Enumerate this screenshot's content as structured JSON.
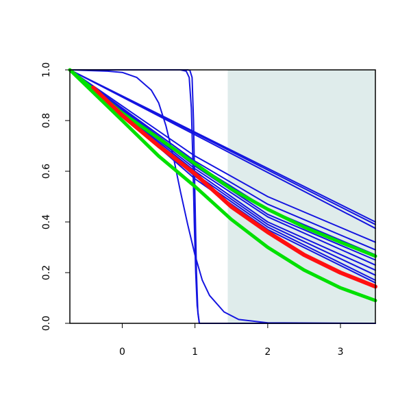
{
  "chart_data": {
    "type": "line",
    "title": "",
    "xlabel": "",
    "ylabel": "",
    "xlim": [
      -0.72,
      3.48
    ],
    "ylim": [
      0,
      1
    ],
    "x_ticks": [
      0,
      1,
      2,
      3
    ],
    "y_ticks": [
      0.0,
      0.2,
      0.4,
      0.6,
      0.8,
      1.0
    ],
    "x_tick_labels": [
      "0",
      "1",
      "2",
      "3"
    ],
    "y_tick_labels": [
      "0.0",
      "0.2",
      "0.4",
      "0.6",
      "0.8",
      "1.0"
    ],
    "grid": false,
    "legend": "none",
    "shaded_region": {
      "x_from": 1.45,
      "x_to": 3.48,
      "color": "#dfeceb"
    },
    "series": [
      {
        "color": "#1414e0",
        "width": 2,
        "x": [
          -0.72,
          0.0,
          0.5,
          0.8,
          0.9,
          0.93,
          0.96,
          0.98,
          1.0,
          1.02,
          1.04,
          1.06,
          3.48
        ],
        "y": [
          1.0,
          1.0,
          1.0,
          1.0,
          1.0,
          0.998,
          0.97,
          0.8,
          0.5,
          0.2,
          0.04,
          0.0,
          0.0
        ]
      },
      {
        "color": "#1414e0",
        "width": 2,
        "x": [
          -0.72,
          0.8,
          0.88,
          0.92,
          0.95,
          0.97,
          0.99,
          1.01,
          1.03,
          1.06,
          3.48
        ],
        "y": [
          1.0,
          1.0,
          0.995,
          0.97,
          0.85,
          0.65,
          0.4,
          0.2,
          0.07,
          0.0,
          0.0
        ]
      },
      {
        "color": "#1414e0",
        "width": 2,
        "x": [
          -0.72,
          -0.2,
          0.0,
          0.2,
          0.4,
          0.5,
          0.6,
          0.7,
          0.8,
          0.9,
          1.0,
          1.1,
          1.2,
          1.4,
          1.6,
          2.0,
          3.48
        ],
        "y": [
          1.0,
          0.995,
          0.99,
          0.97,
          0.92,
          0.87,
          0.78,
          0.66,
          0.52,
          0.39,
          0.27,
          0.17,
          0.11,
          0.045,
          0.015,
          0.002,
          0.0
        ]
      },
      {
        "color": "#1414e0",
        "width": 2,
        "x": [
          -0.72,
          3.48
        ],
        "y": [
          1.0,
          0.4
        ]
      },
      {
        "color": "#1414e0",
        "width": 2,
        "x": [
          -0.72,
          3.48
        ],
        "y": [
          1.0,
          0.39
        ]
      },
      {
        "color": "#1414e0",
        "width": 2,
        "x": [
          -0.72,
          3.48
        ],
        "y": [
          1.0,
          0.375
        ]
      },
      {
        "color": "#1414e0",
        "width": 2,
        "x": [
          -0.72,
          1.0,
          2.0,
          3.48
        ],
        "y": [
          1.0,
          0.66,
          0.5,
          0.32
        ]
      },
      {
        "color": "#1414e0",
        "width": 2,
        "x": [
          -0.72,
          1.0,
          2.0,
          3.48
        ],
        "y": [
          1.0,
          0.64,
          0.47,
          0.29
        ]
      },
      {
        "color": "#1414e0",
        "width": 2,
        "x": [
          -0.72,
          1.0,
          2.0,
          3.48
        ],
        "y": [
          1.0,
          0.63,
          0.45,
          0.27
        ]
      },
      {
        "color": "#1414e0",
        "width": 2,
        "x": [
          -0.72,
          1.0,
          2.0,
          3.48
        ],
        "y": [
          1.0,
          0.62,
          0.43,
          0.25
        ]
      },
      {
        "color": "#1414e0",
        "width": 2,
        "x": [
          -0.72,
          1.0,
          2.0,
          3.48
        ],
        "y": [
          1.0,
          0.61,
          0.42,
          0.23
        ]
      },
      {
        "color": "#1414e0",
        "width": 2,
        "x": [
          -0.72,
          1.0,
          2.0,
          3.48
        ],
        "y": [
          1.0,
          0.6,
          0.4,
          0.21
        ]
      },
      {
        "color": "#1414e0",
        "width": 2,
        "x": [
          -0.72,
          1.0,
          2.0,
          3.48
        ],
        "y": [
          1.0,
          0.59,
          0.39,
          0.19
        ]
      },
      {
        "color": "#1414e0",
        "width": 2,
        "x": [
          -0.72,
          1.0,
          2.0,
          3.48
        ],
        "y": [
          1.0,
          0.58,
          0.38,
          0.17
        ]
      },
      {
        "color": "#1414e0",
        "width": 2,
        "x": [
          -0.72,
          1.0,
          2.0,
          3.48
        ],
        "y": [
          1.0,
          0.57,
          0.37,
          0.16
        ]
      },
      {
        "color": "#00e000",
        "width": 5,
        "x": [
          -0.72,
          -0.3,
          0.0,
          0.5,
          1.0,
          1.5,
          2.0,
          2.5,
          3.0,
          3.48
        ],
        "y": [
          1.0,
          0.9,
          0.83,
          0.73,
          0.63,
          0.53,
          0.45,
          0.38,
          0.32,
          0.265
        ]
      },
      {
        "color": "#ff1010",
        "width": 6,
        "x": [
          -0.4,
          0.0,
          0.5,
          1.0,
          1.5,
          2.0,
          2.5,
          3.0,
          3.48
        ],
        "y": [
          0.93,
          0.82,
          0.7,
          0.59,
          0.46,
          0.36,
          0.27,
          0.2,
          0.145
        ]
      },
      {
        "color": "#00e000",
        "width": 5,
        "x": [
          -0.72,
          0.0,
          0.5,
          1.0,
          1.5,
          2.0,
          2.5,
          3.0,
          3.48
        ],
        "y": [
          1.0,
          0.8,
          0.66,
          0.54,
          0.41,
          0.3,
          0.21,
          0.14,
          0.09
        ]
      }
    ]
  }
}
